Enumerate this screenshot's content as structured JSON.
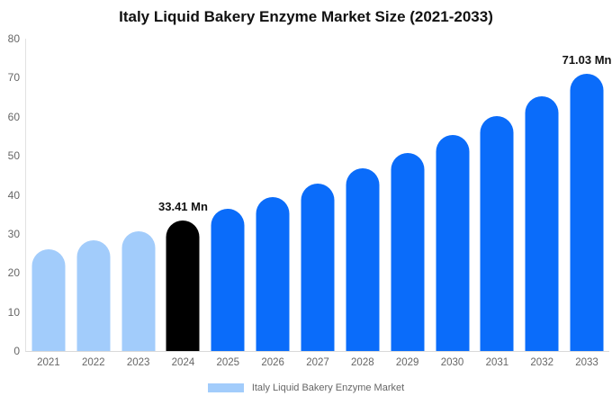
{
  "colors": {
    "historical_bar": "#a2ccfb",
    "base_year_bar": "#000000",
    "forecast_bar": "#0a6cfa",
    "axis_text": "#666666",
    "axis_line_vertical": "#e2e2e2",
    "axis_line_horizontal": "#d9d9d9",
    "annotation_text": "#111111",
    "title_text": "#111111"
  },
  "chart_data": {
    "type": "bar",
    "title": "Italy Liquid Bakery Enzyme Market Size (2021-2033)",
    "unit": "Mn",
    "categories": [
      "2021",
      "2022",
      "2023",
      "2024",
      "2025",
      "2026",
      "2027",
      "2028",
      "2029",
      "2030",
      "2031",
      "2032",
      "2033"
    ],
    "values": [
      25.99,
      28.26,
      30.73,
      33.41,
      36.33,
      39.51,
      42.96,
      46.72,
      50.8,
      55.24,
      60.07,
      65.32,
      71.03
    ],
    "bar_colors": [
      "#a2ccfb",
      "#a2ccfb",
      "#a2ccfb",
      "#000000",
      "#0a6cfa",
      "#0a6cfa",
      "#0a6cfa",
      "#0a6cfa",
      "#0a6cfa",
      "#0a6cfa",
      "#0a6cfa",
      "#0a6cfa",
      "#0a6cfa"
    ],
    "xlabel": "",
    "ylabel": "",
    "ylim": [
      0,
      80
    ],
    "yticks": [
      0,
      10,
      20,
      30,
      40,
      50,
      60,
      70,
      80
    ],
    "grid": false,
    "annotations": [
      {
        "category": "2024",
        "index": 3,
        "text": "33.41 Mn"
      },
      {
        "category": "2033",
        "index": 12,
        "text": "71.03 Mn"
      }
    ],
    "legend": {
      "position": "bottom",
      "entries": [
        {
          "label": "Italy Liquid Bakery Enzyme Market",
          "color": "#a2ccfb"
        }
      ]
    }
  }
}
